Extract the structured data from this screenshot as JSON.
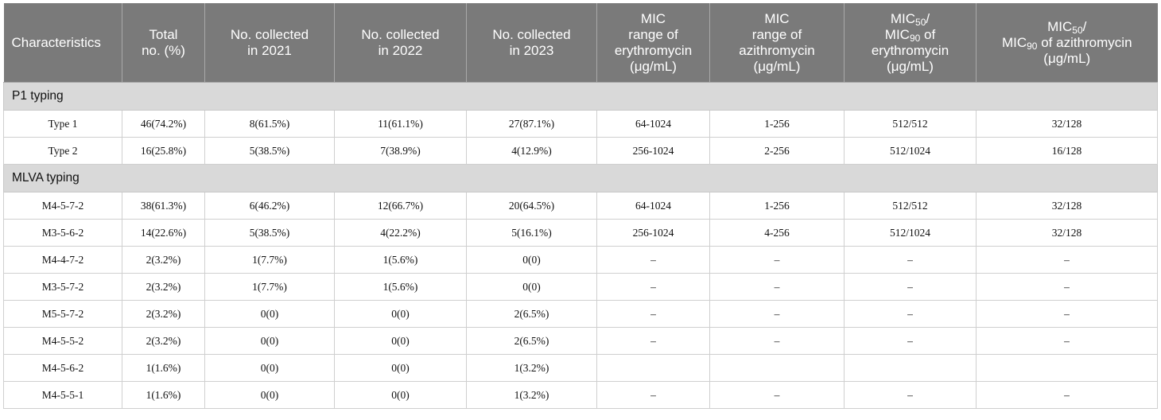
{
  "header": {
    "characteristics": "Characteristics",
    "total_line1": "Total",
    "total_line2": "no. (%)",
    "c2021_line1": "No. collected",
    "c2021_line2": "in 2021",
    "c2022_line1": "No. collected",
    "c2022_line2": "in 2022",
    "c2023_line1": "No. collected",
    "c2023_line2": "in 2023",
    "mic_ery_l1": "MIC",
    "mic_ery_l2": "range of",
    "mic_ery_l3": "erythromycin",
    "mic_ery_l4": "(μg/mL)",
    "mic_azi_l1": "MIC",
    "mic_azi_l2": "range of",
    "mic_azi_l3": "azithromycin",
    "mic_azi_l4": "(μg/mL)",
    "mic_base": "MIC",
    "sub50": "50",
    "sub90": "90",
    "slash": "/",
    "ery_of": " of",
    "ery_l3": "erythromycin",
    "ery_l4": "(μg/mL)",
    "azi_of": " of azithromycin",
    "azi_l3": "(μg/mL)"
  },
  "sections": {
    "p1_title": "P1 typing",
    "mlva_title": "MLVA typing"
  },
  "p1_rows": [
    [
      "Type 1",
      "46(74.2%)",
      "8(61.5%)",
      "11(61.1%)",
      "27(87.1%)",
      "64-1024",
      "1-256",
      "512/512",
      "32/128"
    ],
    [
      "Type 2",
      "16(25.8%)",
      "5(38.5%)",
      "7(38.9%)",
      "4(12.9%)",
      "256-1024",
      "2-256",
      "512/1024",
      "16/128"
    ]
  ],
  "mlva_rows": [
    [
      "M4-5-7-2",
      "38(61.3%)",
      "6(46.2%)",
      "12(66.7%)",
      "20(64.5%)",
      "64-1024",
      "1-256",
      "512/512",
      "32/128"
    ],
    [
      "M3-5-6-2",
      "14(22.6%)",
      "5(38.5%)",
      "4(22.2%)",
      "5(16.1%)",
      "256-1024",
      "4-256",
      "512/1024",
      "32/128"
    ],
    [
      "M4-4-7-2",
      "2(3.2%)",
      "1(7.7%)",
      "1(5.6%)",
      "0(0)",
      "–",
      "–",
      "–",
      "–"
    ],
    [
      "M3-5-7-2",
      "2(3.2%)",
      "1(7.7%)",
      "1(5.6%)",
      "0(0)",
      "–",
      "–",
      "–",
      "–"
    ],
    [
      "M5-5-7-2",
      "2(3.2%)",
      "0(0)",
      "0(0)",
      "2(6.5%)",
      "–",
      "–",
      "–",
      "–"
    ],
    [
      "M4-5-5-2",
      "2(3.2%)",
      "0(0)",
      "0(0)",
      "2(6.5%)",
      "–",
      "–",
      "–",
      "–"
    ],
    [
      "M4-5-6-2",
      "1(1.6%)",
      "0(0)",
      "0(0)",
      "1(3.2%)",
      "",
      "",
      "",
      ""
    ],
    [
      "M4-5-5-1",
      "1(1.6%)",
      "0(0)",
      "0(0)",
      "1(3.2%)",
      "–",
      "–",
      "–",
      "–"
    ]
  ]
}
